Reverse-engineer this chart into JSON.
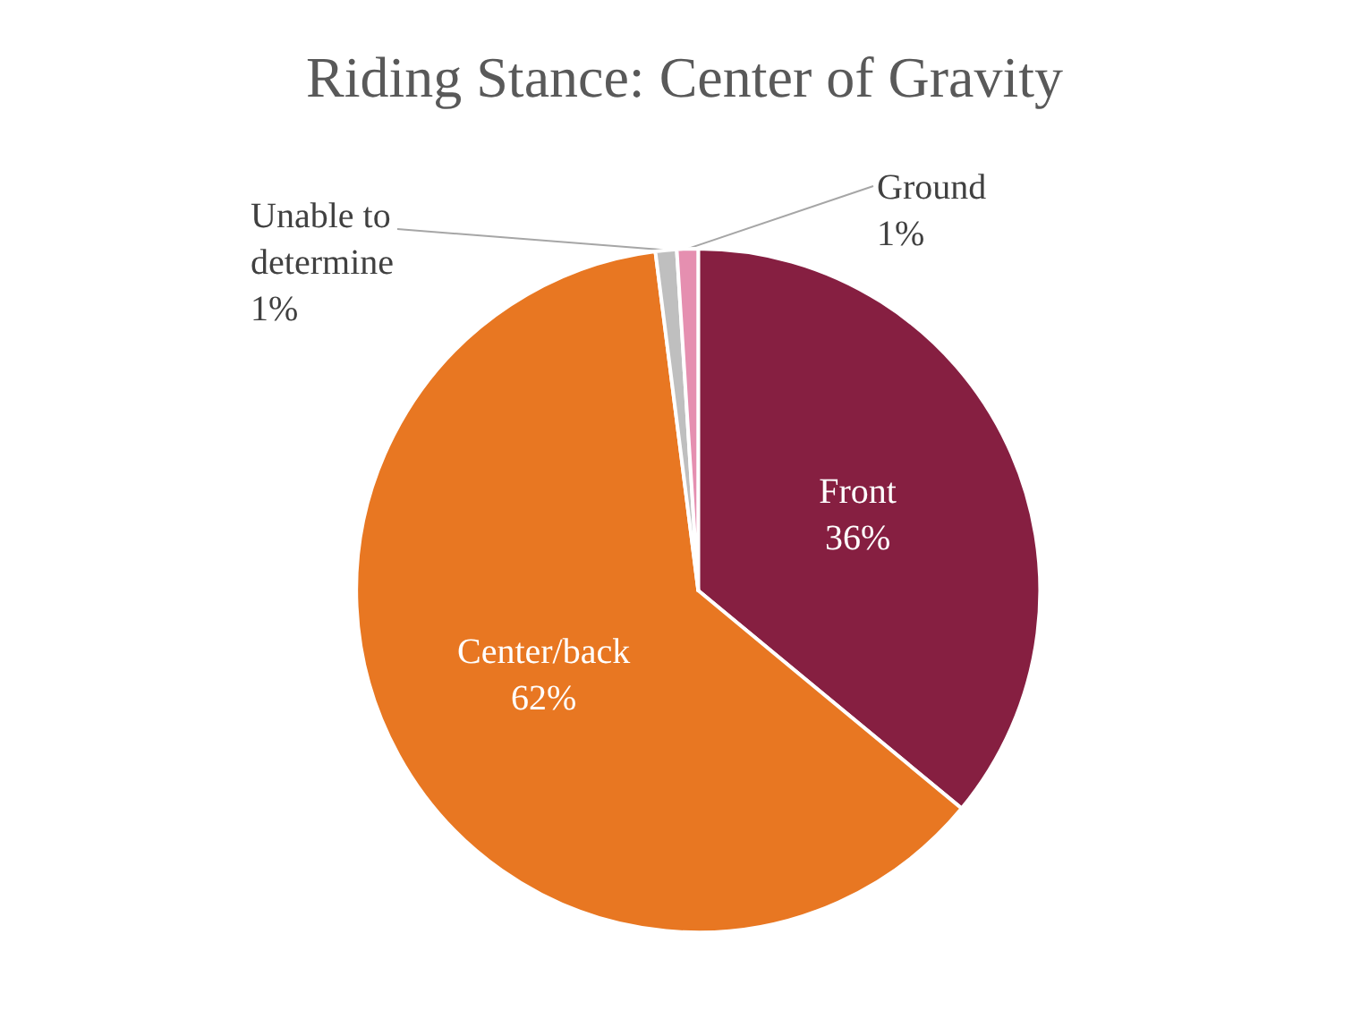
{
  "chart_data": {
    "type": "pie",
    "title": "Riding Stance: Center of Gravity",
    "categories": [
      "Front",
      "Center/back",
      "Unable to\ndetermine",
      "Ground"
    ],
    "values": [
      36,
      62,
      1,
      1
    ],
    "value_labels": [
      "36%",
      "62%",
      "1%",
      "1%"
    ],
    "colors": [
      "#861f41",
      "#e87722",
      "#bfbfbf",
      "#e58fb0"
    ],
    "legend": false
  }
}
